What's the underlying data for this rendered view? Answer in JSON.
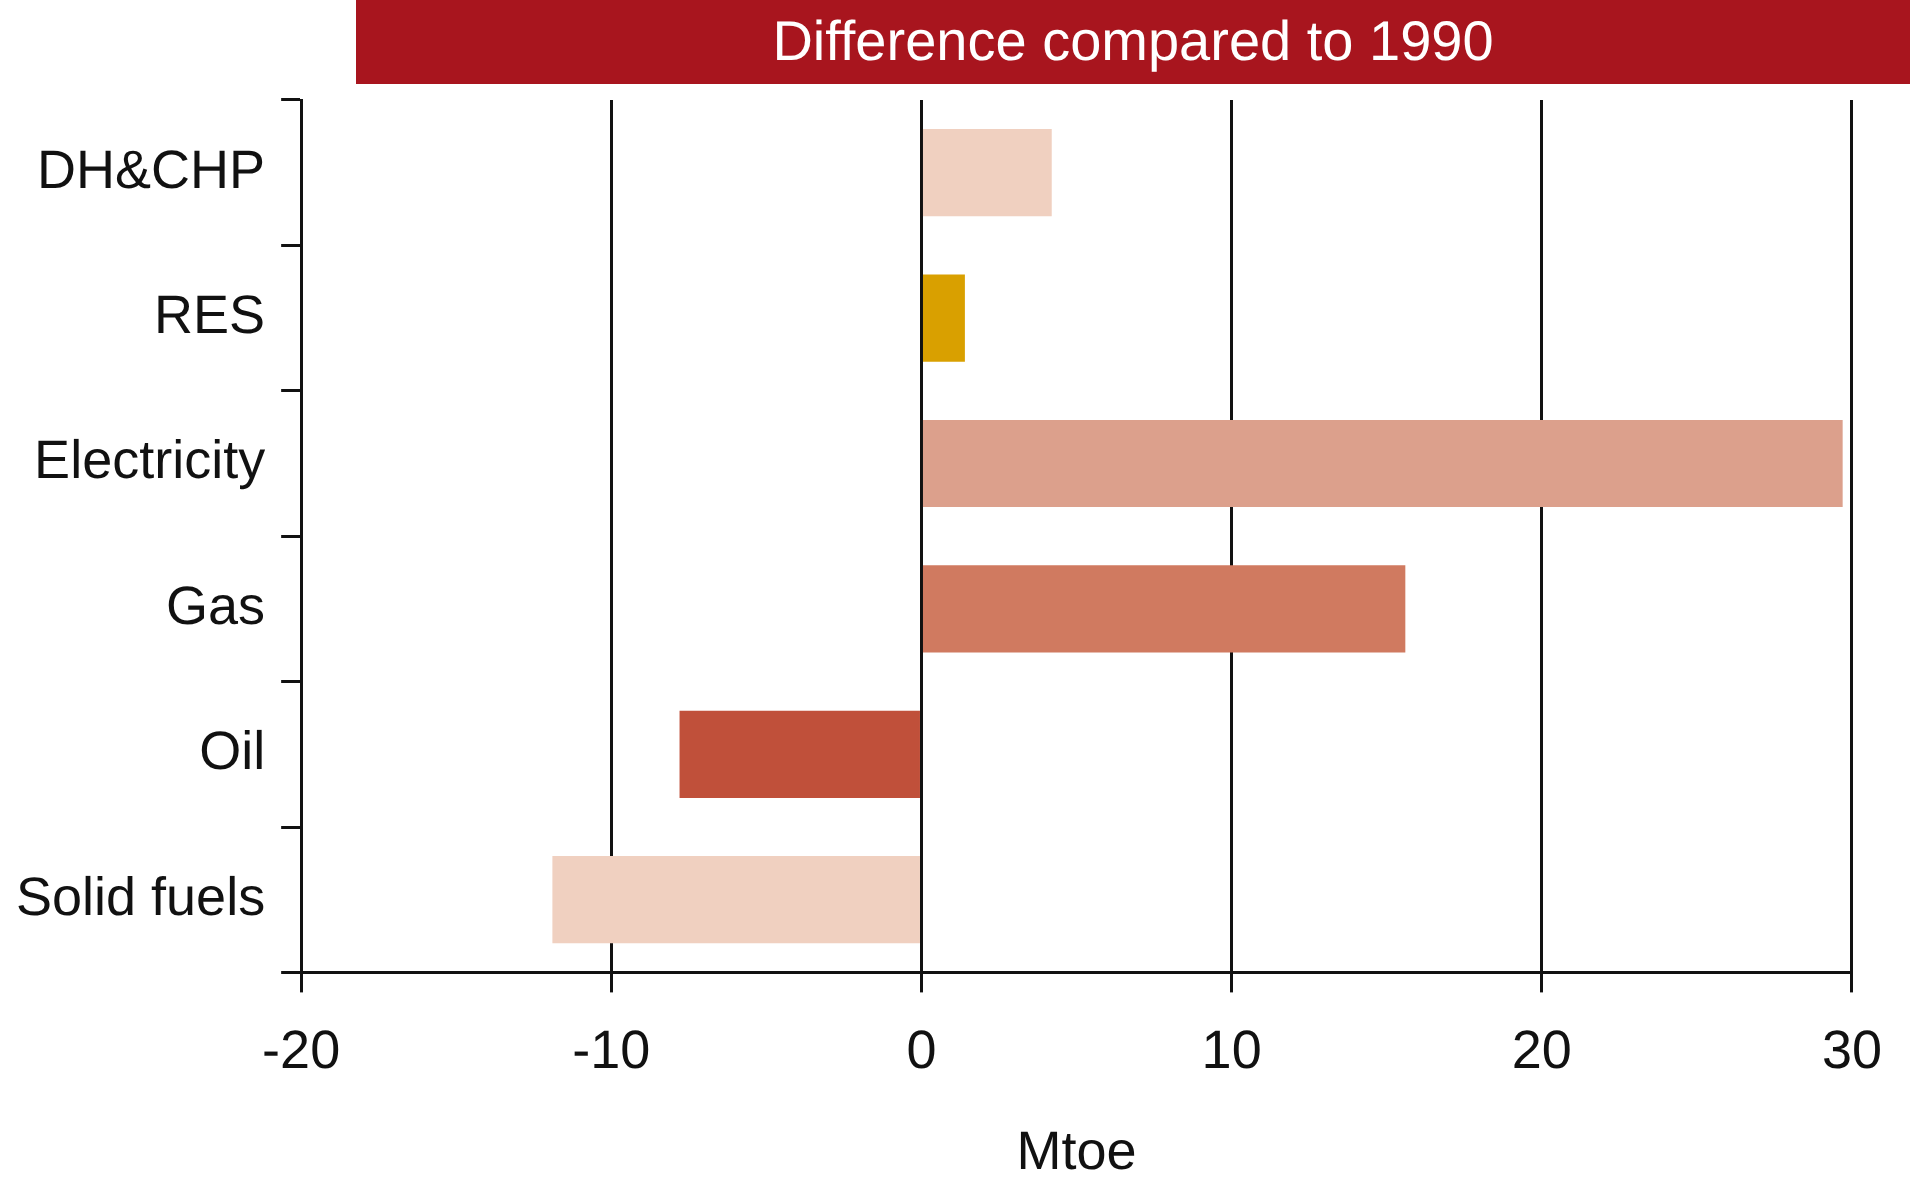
{
  "chart_data": {
    "type": "bar",
    "orientation": "horizontal",
    "title": "Difference compared to 1990",
    "xlabel": "Mtoe",
    "categories": [
      "DH&CHP",
      "RES",
      "Electricity",
      "Gas",
      "Oil",
      "Solid fuels"
    ],
    "values": [
      4.2,
      1.4,
      29.7,
      15.6,
      -7.8,
      -11.9
    ],
    "colors": [
      "#f0d0c0",
      "#d9a000",
      "#dca08c",
      "#d07a60",
      "#c0503a",
      "#f0d0c0"
    ],
    "xlim": [
      -20,
      30
    ],
    "xticks": [
      -20,
      -10,
      0,
      10,
      20,
      30
    ],
    "grid": "x",
    "legend": false
  }
}
